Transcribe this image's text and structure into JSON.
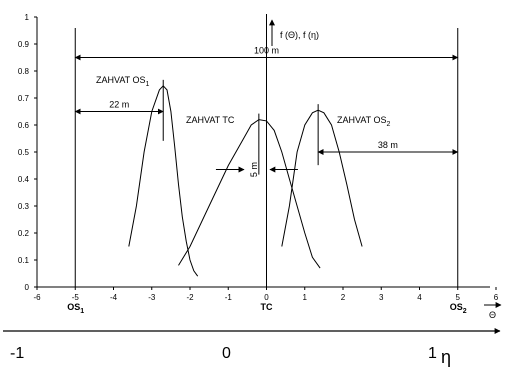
{
  "chart_data": {
    "type": "line",
    "x_axis": {
      "range": [
        -6,
        6
      ],
      "ticks": [
        "-6",
        "-5",
        "-4",
        "-3",
        "-2",
        "-1",
        "0",
        "1",
        "2",
        "3",
        "4",
        "5",
        "6"
      ]
    },
    "y_axis": {
      "range": [
        0,
        1
      ],
      "ticks": [
        "0",
        "0.1",
        "0.2",
        "0.3",
        "0.4",
        "0.5",
        "0.6",
        "0.7",
        "0.8",
        "0.9",
        "1"
      ]
    },
    "eta_axis": {
      "ticks": [
        "-1",
        "0",
        "1"
      ],
      "label": "η"
    },
    "theta_label": "Θ",
    "y_axis_title": "f (Θ), f (η)",
    "section_labels": [
      {
        "text": "OS",
        "sub": "1",
        "x": -5
      },
      {
        "text": "TC",
        "sub": "",
        "x": 0
      },
      {
        "text": "OS",
        "sub": "2",
        "x": 5
      }
    ],
    "vertical_lines_x": [
      -5,
      0,
      5
    ],
    "series": [
      {
        "label": "ZAHVAT OS",
        "sub": "1",
        "x": [
          -3.6,
          -3.4,
          -3.2,
          -3.0,
          -2.8,
          -2.7,
          -2.6,
          -2.5,
          -2.4,
          -2.3,
          -2.2,
          -2.1,
          -2.0,
          -1.9,
          -1.8
        ],
        "y": [
          0.15,
          0.3,
          0.5,
          0.65,
          0.73,
          0.745,
          0.73,
          0.65,
          0.52,
          0.38,
          0.26,
          0.17,
          0.1,
          0.06,
          0.04
        ]
      },
      {
        "label": "ZAHVAT TC",
        "sub": "",
        "x": [
          -2.3,
          -2.0,
          -1.5,
          -1.0,
          -0.6,
          -0.4,
          -0.2,
          0.0,
          0.2,
          0.4,
          0.6,
          0.8,
          1.0,
          1.2,
          1.4
        ],
        "y": [
          0.08,
          0.15,
          0.3,
          0.45,
          0.55,
          0.6,
          0.62,
          0.615,
          0.58,
          0.5,
          0.4,
          0.3,
          0.2,
          0.11,
          0.07
        ]
      },
      {
        "label": "ZAHVAT OS",
        "sub": "2",
        "x": [
          0.4,
          0.6,
          0.8,
          1.0,
          1.2,
          1.35,
          1.5,
          1.7,
          1.9,
          2.1,
          2.3,
          2.5
        ],
        "y": [
          0.15,
          0.3,
          0.5,
          0.6,
          0.645,
          0.655,
          0.645,
          0.6,
          0.5,
          0.38,
          0.25,
          0.15
        ]
      }
    ],
    "dimension_annotations": [
      {
        "text": "100 m",
        "from_x": -5,
        "to_x": 5,
        "y": 0.85
      },
      {
        "text": "22 m",
        "from_x": -5,
        "to_x": -2.7,
        "y": 0.65
      },
      {
        "text": "38 m",
        "from_x": 1.35,
        "to_x": 5,
        "y": 0.5
      },
      {
        "text": "5 m",
        "center_x": -0.25,
        "y": 0.435
      }
    ],
    "grid": false
  }
}
